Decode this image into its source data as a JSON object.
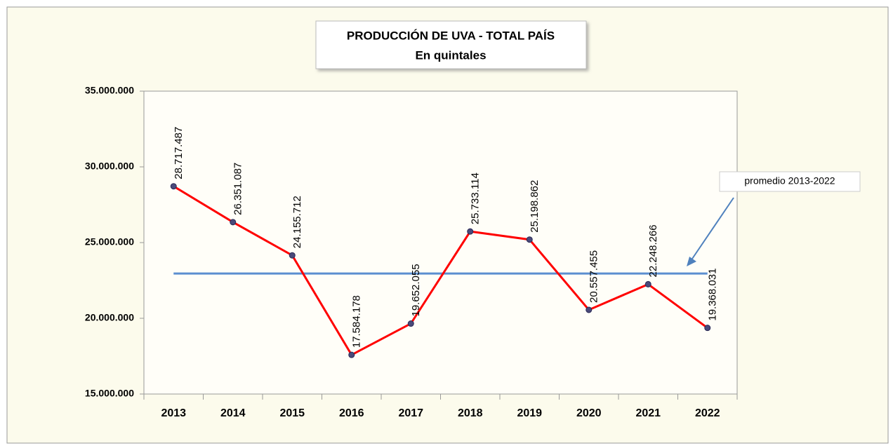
{
  "chart_data": {
    "type": "line",
    "title": "PRODUCCIÓN DE UVA - TOTAL PAÍS",
    "subtitle": "En quintales",
    "categories": [
      "2013",
      "2014",
      "2015",
      "2016",
      "2017",
      "2018",
      "2019",
      "2020",
      "2021",
      "2022"
    ],
    "series": [
      {
        "name": "Producción",
        "color": "#ff0000",
        "values": [
          28717487,
          26351087,
          24155712,
          17584178,
          19652055,
          25733114,
          25198862,
          20557455,
          22248266,
          19368031
        ],
        "value_labels": [
          "28.717.487",
          "26.351.087",
          "24.155.712",
          "17.584.178",
          "19.652.055",
          "25.733.114",
          "25.198.862",
          "20.557.455",
          "22.248.266",
          "19.368.031"
        ]
      }
    ],
    "average": {
      "label": "promedio 2013-2022",
      "value": 22956625,
      "color": "#5b8fd0"
    },
    "ylim": [
      15000000,
      35000000
    ],
    "yticks": [
      {
        "value": 15000000,
        "label": "15.000.000"
      },
      {
        "value": 20000000,
        "label": "20.000.000"
      },
      {
        "value": 25000000,
        "label": "25.000.000"
      },
      {
        "value": 30000000,
        "label": "30.000.000"
      },
      {
        "value": 35000000,
        "label": "35.000.000"
      }
    ],
    "grid": false
  }
}
